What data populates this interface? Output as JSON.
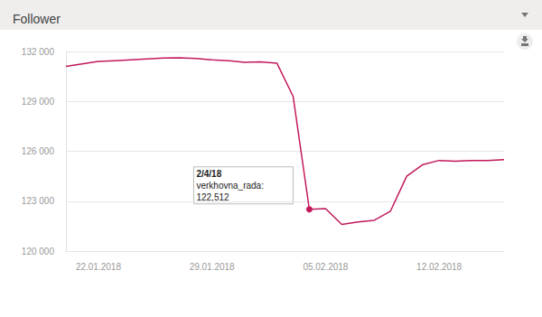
{
  "chart_data": {
    "type": "line",
    "title": "Follower",
    "categories": [
      null,
      null,
      "22.01.2018",
      null,
      null,
      null,
      null,
      null,
      null,
      "29.01.2018",
      null,
      null,
      null,
      null,
      null,
      null,
      "05.02.2018",
      null,
      null,
      null,
      null,
      null,
      null,
      "12.02.2018",
      null,
      null,
      null,
      null
    ],
    "series": [
      {
        "name": "verkhovna_rada",
        "color": "#c2185b",
        "values": [
          131100,
          131250,
          131400,
          131450,
          131500,
          131550,
          131600,
          131620,
          131580,
          131500,
          131450,
          131350,
          131380,
          131300,
          129300,
          122512,
          122550,
          121600,
          121750,
          121850,
          122400,
          124500,
          125200,
          125450,
          125400,
          125450,
          125450,
          125500
        ]
      }
    ],
    "ylim": [
      120000,
      132000
    ],
    "yticks": [
      {
        "value": 120000,
        "label": "120 000"
      },
      {
        "value": 123000,
        "label": "123 000"
      },
      {
        "value": 126000,
        "label": "126 000"
      },
      {
        "value": 129000,
        "label": "129 000"
      },
      {
        "value": 132000,
        "label": "132 000"
      }
    ],
    "grid": true,
    "annotations": [
      {
        "title": "2/4/18",
        "text": "verkhovna_rada:",
        "value": 122512,
        "label": "122,512"
      }
    ]
  }
}
